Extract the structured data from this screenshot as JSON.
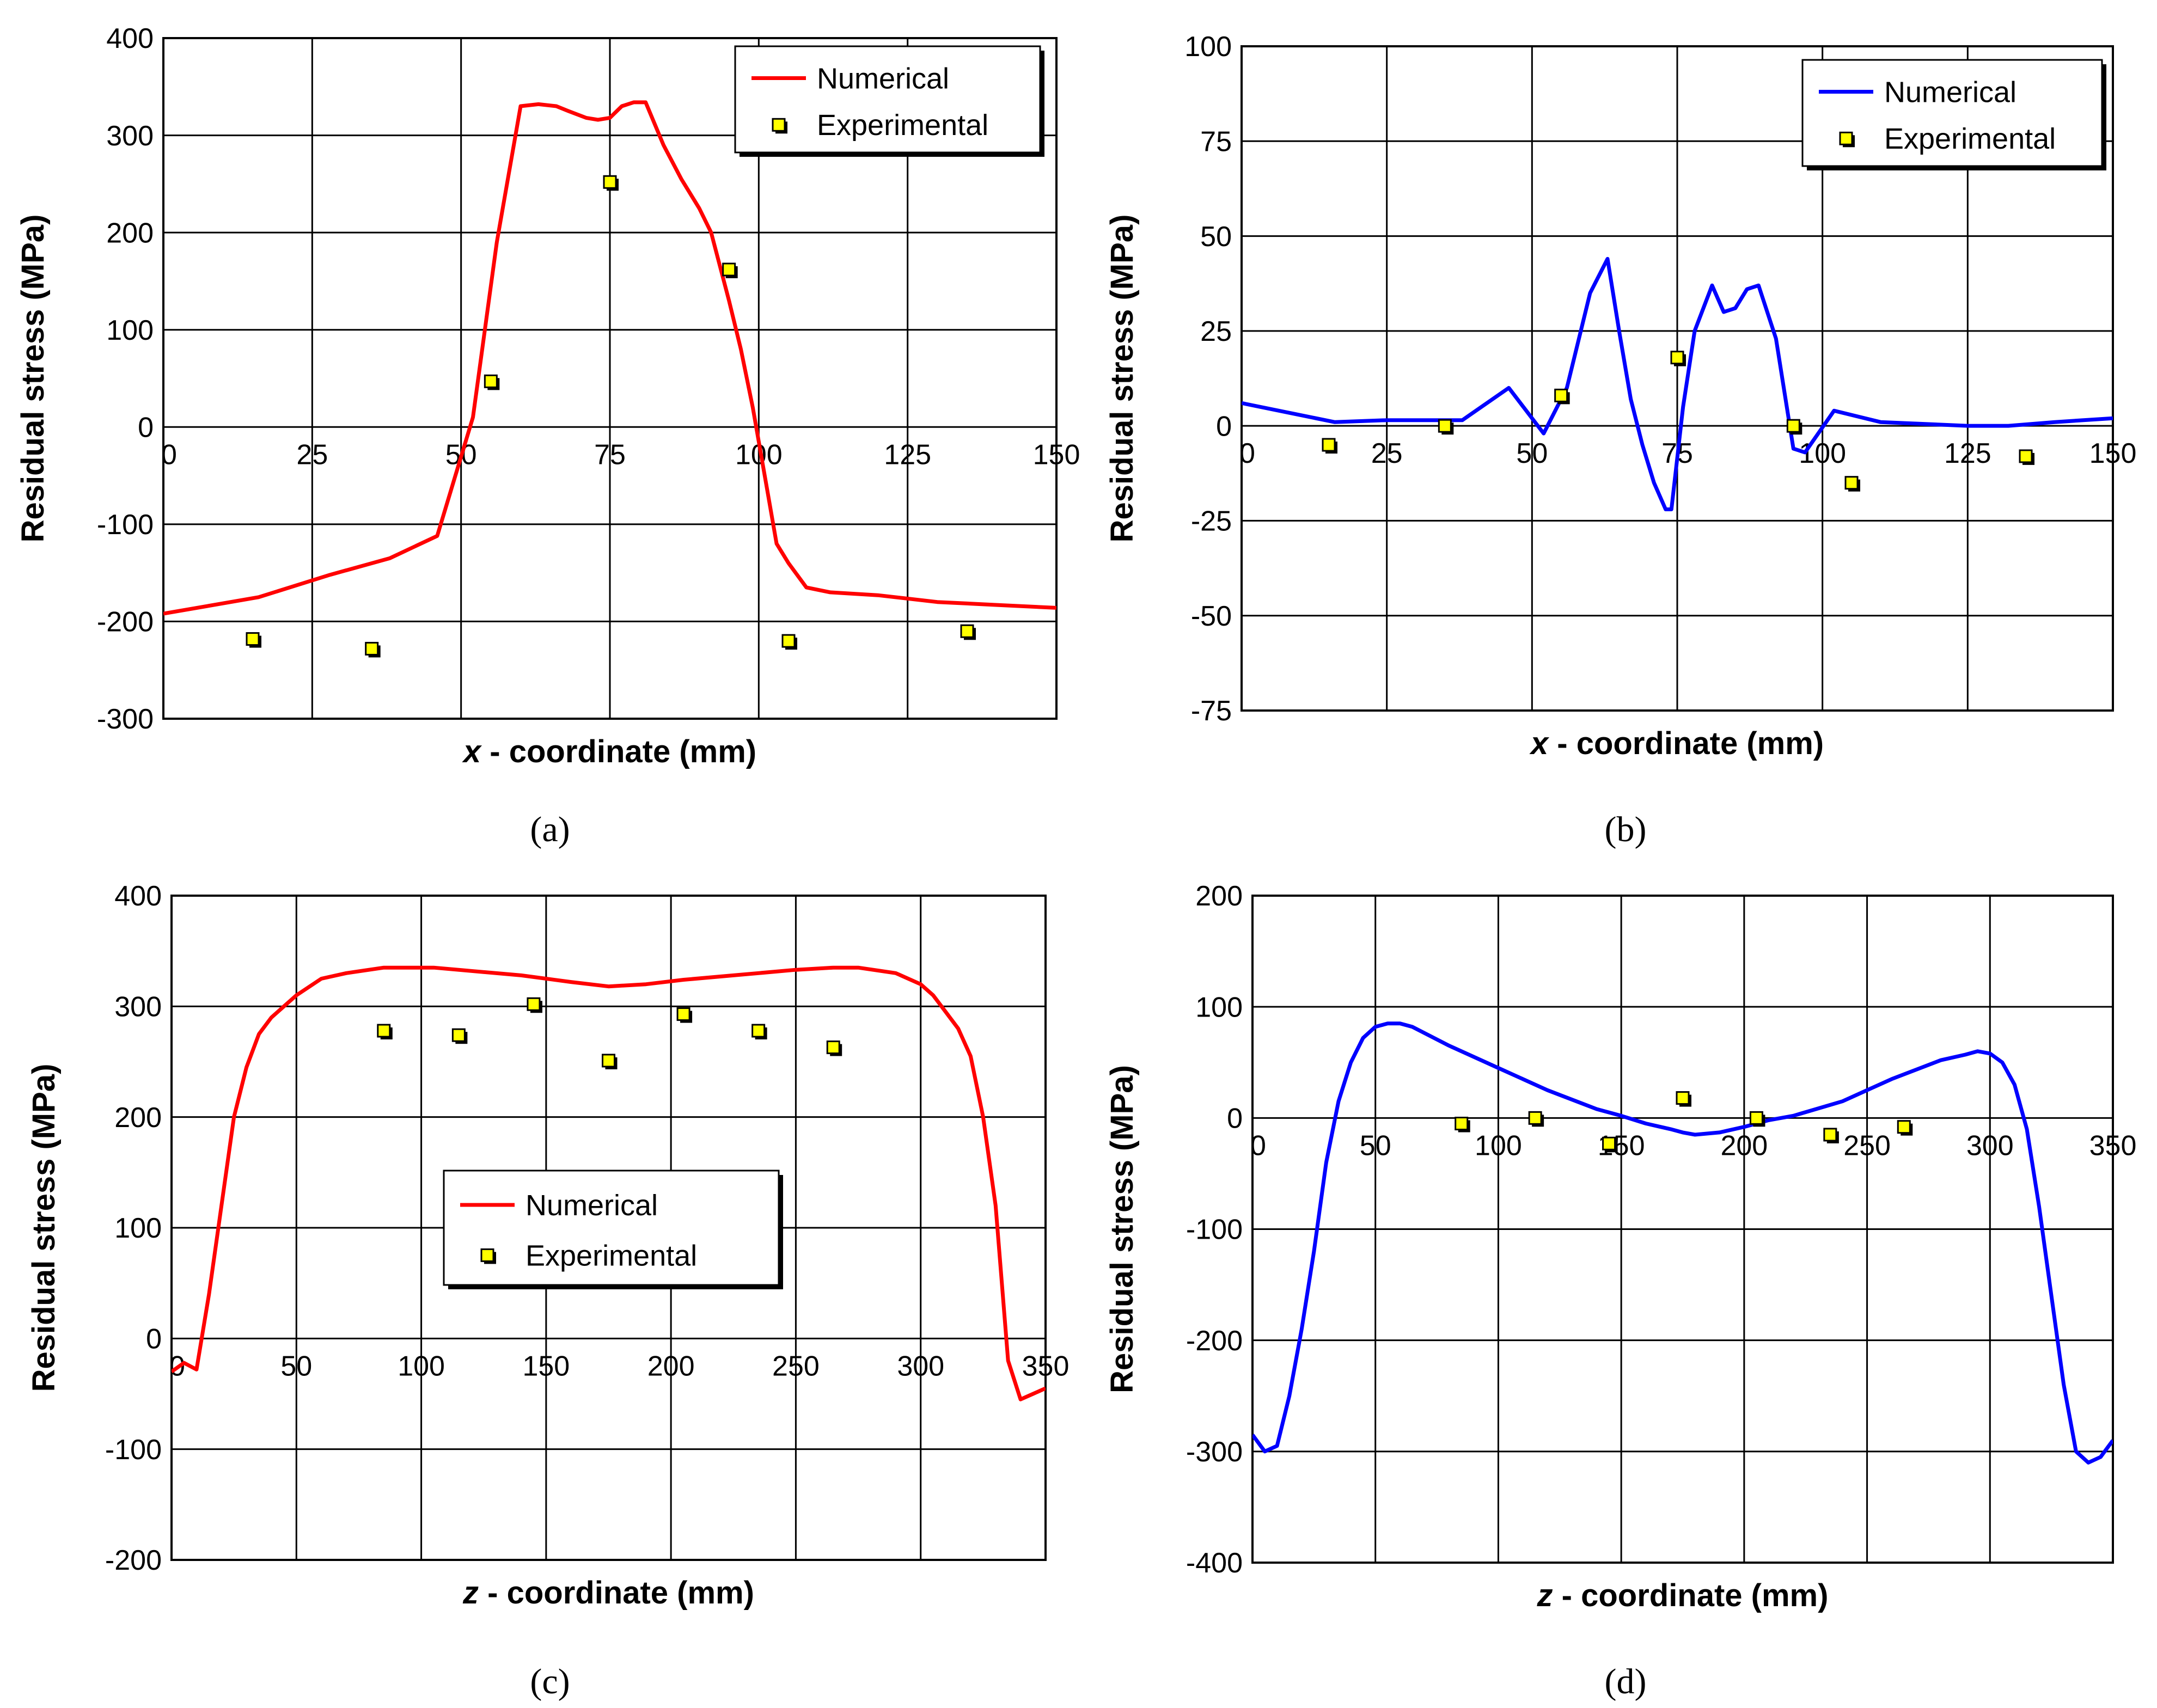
{
  "colors": {
    "numerical_a": "#ff0000",
    "numerical_b": "#0000ff",
    "marker_fill": "#ffff00",
    "grid": "#000000"
  },
  "chart_data": [
    {
      "id": "a",
      "type": "line",
      "caption": "(a)",
      "xlabel_var": "x",
      "xlabel_rest": " - coordinate (mm)",
      "ylabel": "Residual stress (MPa)",
      "xlim": [
        0,
        150
      ],
      "ylim": [
        -300,
        400
      ],
      "xticks": [
        0,
        25,
        50,
        75,
        100,
        125,
        150
      ],
      "xtick_labels": [
        "0",
        "25",
        "50",
        "75",
        "100",
        "125",
        "150"
      ],
      "yticks": [
        -300,
        -200,
        -100,
        0,
        100,
        200,
        300,
        400
      ],
      "ytick_labels": [
        "-300",
        "-200",
        "-100",
        "0",
        "100",
        "200",
        "300",
        "400"
      ],
      "legend": {
        "position": "top-right",
        "numerical": "Numerical",
        "experimental": "Experimental"
      },
      "series": [
        {
          "name": "Numerical",
          "color": "#ff0000",
          "x": [
            0,
            16,
            28,
            38,
            46,
            52,
            56,
            60,
            63,
            66,
            68,
            71,
            73,
            75,
            77,
            79,
            81,
            84,
            87,
            90,
            92,
            95,
            97,
            99,
            101,
            103,
            105,
            108,
            112,
            120,
            130,
            140,
            150
          ],
          "y": [
            -192,
            -175,
            -152,
            -135,
            -112,
            10,
            190,
            330,
            332,
            330,
            325,
            318,
            316,
            318,
            330,
            334,
            334,
            290,
            255,
            225,
            200,
            130,
            80,
            20,
            -50,
            -120,
            -140,
            -165,
            -170,
            -173,
            -180,
            -183,
            -186
          ]
        },
        {
          "name": "Experimental",
          "x": [
            15,
            35,
            55,
            75,
            95,
            105,
            135
          ],
          "y": [
            -218,
            -228,
            47,
            252,
            162,
            -220,
            -210
          ]
        }
      ]
    },
    {
      "id": "b",
      "type": "line",
      "caption": "(b)",
      "xlabel_var": "x",
      "xlabel_rest": " - coordinate (mm)",
      "ylabel": "Residual stress (MPa)",
      "xlim": [
        0,
        150
      ],
      "ylim": [
        -75,
        100
      ],
      "xticks": [
        0,
        25,
        50,
        75,
        100,
        125,
        150
      ],
      "xtick_labels": [
        "0",
        "25",
        "50",
        "75",
        "100",
        "125",
        "150"
      ],
      "yticks": [
        -75,
        -50,
        -25,
        0,
        25,
        50,
        75,
        100
      ],
      "ytick_labels": [
        "-75",
        "-50",
        "-25",
        "0",
        "25",
        "50",
        "75",
        "100"
      ],
      "legend": {
        "position": "top-right",
        "numerical": "Numerical",
        "experimental": "Experimental"
      },
      "series": [
        {
          "name": "Numerical",
          "color": "#0000ff",
          "x": [
            0,
            16,
            25,
            35,
            38,
            46,
            52,
            56,
            60,
            63,
            65,
            67,
            69,
            71,
            73,
            74,
            76,
            78,
            80,
            81,
            83,
            85,
            87,
            89,
            92,
            95,
            97,
            102,
            110,
            125,
            132,
            140,
            150
          ],
          "y": [
            6,
            1,
            1.5,
            1.5,
            1.5,
            10,
            -2,
            10,
            35,
            44,
            25,
            7,
            -5,
            -15,
            -22,
            -22,
            5,
            25,
            33,
            37,
            30,
            31,
            36,
            37,
            23,
            -6,
            -7,
            4,
            1,
            0,
            0,
            1,
            2
          ]
        },
        {
          "name": "Experimental",
          "x": [
            15,
            35,
            55,
            75,
            95,
            105,
            135
          ],
          "y": [
            -5,
            0,
            8,
            18,
            0,
            -15,
            -8
          ]
        }
      ]
    },
    {
      "id": "c",
      "type": "line",
      "caption": "(c)",
      "xlabel_var": "z",
      "xlabel_rest": " - coordinate (mm)",
      "ylabel": "Residual stress (MPa)",
      "xlim": [
        0,
        350
      ],
      "ylim": [
        -200,
        400
      ],
      "xticks": [
        0,
        50,
        100,
        150,
        200,
        250,
        300,
        350
      ],
      "xtick_labels": [
        "0",
        "50",
        "100",
        "150",
        "200",
        "250",
        "300",
        "350"
      ],
      "yticks": [
        -200,
        -100,
        0,
        100,
        200,
        300,
        400
      ],
      "ytick_labels": [
        "-200",
        "-100",
        "0",
        "100",
        "200",
        "300",
        "400"
      ],
      "legend": {
        "position": "center",
        "numerical": "Numerical",
        "experimental": "Experimental"
      },
      "series": [
        {
          "name": "Numerical",
          "color": "#ff0000",
          "x": [
            0,
            5,
            10,
            15,
            20,
            25,
            30,
            35,
            40,
            50,
            60,
            70,
            85,
            105,
            120,
            140,
            160,
            175,
            190,
            205,
            225,
            250,
            265,
            275,
            290,
            300,
            305,
            310,
            315,
            320,
            325,
            330,
            335,
            340,
            345,
            350
          ],
          "y": [
            -30,
            -22,
            -28,
            40,
            120,
            200,
            245,
            275,
            290,
            310,
            325,
            330,
            335,
            335,
            332,
            328,
            322,
            318,
            320,
            324,
            328,
            333,
            335,
            335,
            330,
            320,
            310,
            295,
            280,
            255,
            200,
            120,
            -20,
            -55,
            -50,
            -45
          ]
        },
        {
          "name": "Experimental",
          "x": [
            85,
            115,
            145,
            175,
            205,
            235,
            265
          ],
          "y": [
            278,
            274,
            302,
            251,
            293,
            278,
            263
          ]
        }
      ]
    },
    {
      "id": "d",
      "type": "line",
      "caption": "(d)",
      "xlabel_var": "z",
      "xlabel_rest": " - coordinate (mm)",
      "ylabel": "Residual stress (MPa)",
      "xlim": [
        0,
        350
      ],
      "ylim": [
        -400,
        200
      ],
      "xticks": [
        0,
        50,
        100,
        150,
        200,
        250,
        300,
        350
      ],
      "xtick_labels": [
        "0",
        "50",
        "100",
        "150",
        "200",
        "250",
        "300",
        "350"
      ],
      "yticks": [
        -400,
        -300,
        -200,
        -100,
        0,
        100,
        200
      ],
      "ytick_labels": [
        "-400",
        "-300",
        "-200",
        "-100",
        "0",
        "100",
        "200"
      ],
      "legend": {
        "position": "none",
        "numerical": "",
        "experimental": ""
      },
      "series": [
        {
          "name": "Numerical",
          "color": "#0000ff",
          "x": [
            0,
            5,
            10,
            15,
            20,
            25,
            30,
            35,
            40,
            45,
            50,
            55,
            60,
            65,
            80,
            100,
            120,
            140,
            150,
            160,
            170,
            175,
            180,
            190,
            200,
            210,
            220,
            240,
            260,
            280,
            290,
            295,
            300,
            305,
            310,
            315,
            320,
            325,
            330,
            335,
            340,
            345,
            350
          ],
          "y": [
            -285,
            -300,
            -295,
            -250,
            -190,
            -120,
            -40,
            15,
            50,
            72,
            82,
            85,
            85,
            82,
            65,
            45,
            25,
            8,
            2,
            -5,
            -10,
            -13,
            -15,
            -13,
            -8,
            -2,
            2,
            15,
            35,
            52,
            57,
            60,
            58,
            50,
            30,
            -10,
            -80,
            -160,
            -240,
            -300,
            -310,
            -305,
            -290
          ]
        },
        {
          "name": "Experimental",
          "x": [
            85,
            115,
            145,
            175,
            205,
            235,
            265
          ],
          "y": [
            -5,
            0,
            -23,
            18,
            0,
            -15,
            -8
          ]
        }
      ]
    }
  ]
}
